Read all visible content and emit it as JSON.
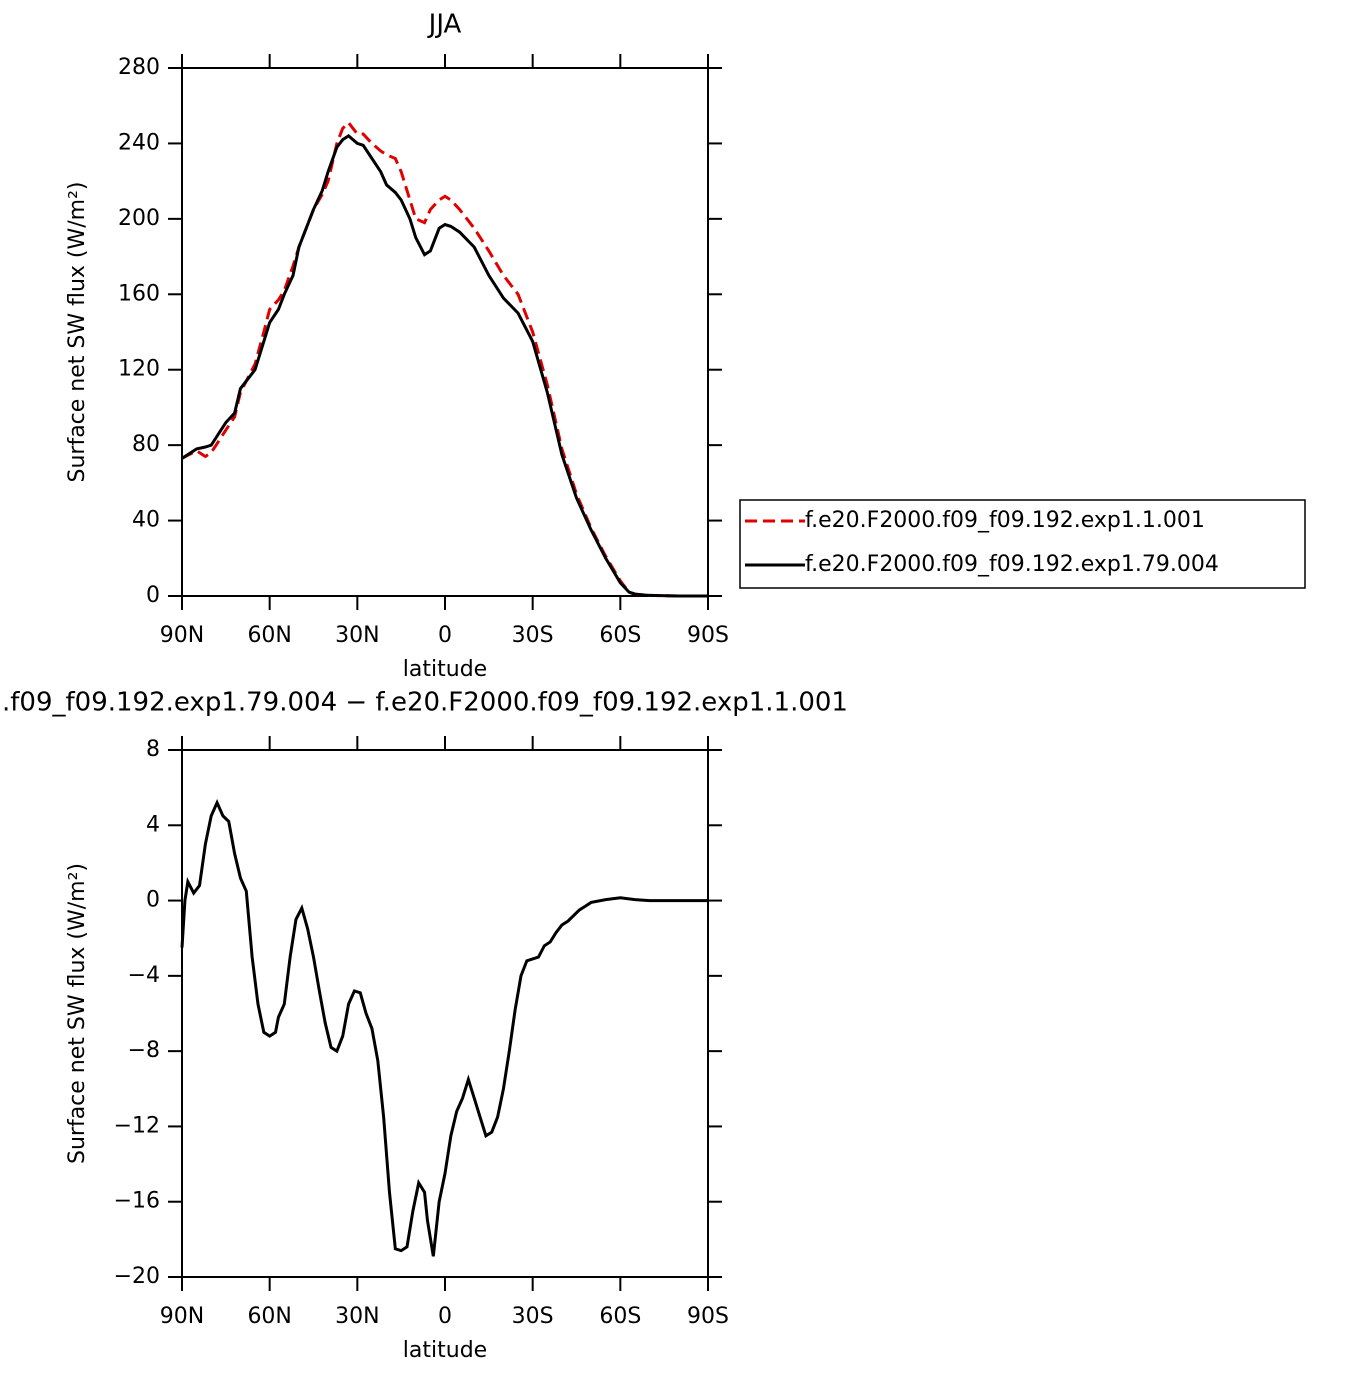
{
  "chart_data": [
    {
      "type": "line",
      "title": "JJA",
      "xlabel": "latitude",
      "ylabel": "Surface net SW flux (W/m²)",
      "x": [
        90,
        85,
        82,
        80,
        75,
        72,
        70,
        65,
        62,
        60,
        57,
        55,
        52,
        50,
        45,
        42,
        40,
        37,
        35,
        33,
        30,
        28,
        25,
        22,
        20,
        17,
        15,
        12,
        10,
        7,
        5,
        2,
        0,
        -2,
        -5,
        -10,
        -15,
        -20,
        -25,
        -30,
        -35,
        -40,
        -45,
        -50,
        -55,
        -60,
        -63,
        -65,
        -70,
        -80,
        -90
      ],
      "series": [
        {
          "name": "f.e20.F2000.f09_f09.192.exp1.1.001",
          "color": "#e00000",
          "style": "dashed",
          "values": [
            73,
            77,
            74,
            76,
            88,
            95,
            108,
            123,
            140,
            152,
            157,
            162,
            175,
            185,
            205,
            213,
            220,
            240,
            248,
            251,
            245,
            245,
            240,
            236,
            234,
            232,
            225,
            210,
            200,
            198,
            205,
            210,
            212,
            210,
            205,
            195,
            183,
            170,
            160,
            140,
            112,
            78,
            54,
            36,
            21,
            8,
            2,
            1,
            0.3,
            0,
            0
          ]
        },
        {
          "name": "f.e20.F2000.f09_f09.192.exp1.79.004",
          "color": "#000000",
          "style": "solid",
          "values": [
            73,
            78,
            79,
            80,
            92,
            97,
            110,
            120,
            135,
            145,
            152,
            160,
            170,
            185,
            205,
            215,
            225,
            238,
            242,
            244,
            240,
            239,
            232,
            225,
            218,
            214,
            210,
            200,
            190,
            181,
            183,
            195,
            197,
            196,
            193,
            185,
            170,
            158,
            150,
            135,
            108,
            75,
            52,
            35,
            20,
            7,
            2,
            1,
            0.3,
            0,
            0
          ]
        }
      ],
      "xlim": [
        90,
        -90
      ],
      "xticks": [
        {
          "value": 90,
          "label": "90N"
        },
        {
          "value": 60,
          "label": "60N"
        },
        {
          "value": 30,
          "label": "30N"
        },
        0,
        {
          "value": -30,
          "label": "30S"
        },
        {
          "value": -60,
          "label": "60S"
        },
        {
          "value": -90,
          "label": "90S"
        }
      ],
      "ylim": [
        0,
        280
      ],
      "yticks": [
        0,
        40,
        80,
        120,
        160,
        200,
        240,
        280
      ],
      "legend": "right"
    },
    {
      "type": "line",
      "title": ".f09_f09.192.exp1.79.004 − f.e20.F2000.f09_f09.192.exp1.1.001",
      "xlabel": "latitude",
      "ylabel": "Surface net SW flux (W/m²)",
      "x": [
        90,
        89,
        88,
        86,
        84,
        82,
        80,
        78,
        76,
        74,
        72,
        70,
        68,
        66,
        64,
        62,
        60,
        58,
        57,
        55,
        53,
        51,
        49,
        47,
        45,
        43,
        41,
        39,
        37,
        35,
        33,
        31,
        29,
        27,
        25,
        23,
        21,
        19,
        17,
        15,
        13,
        11,
        9,
        7,
        6,
        4,
        2,
        0,
        -2,
        -4,
        -6,
        -8,
        -10,
        -12,
        -14,
        -16,
        -18,
        -20,
        -22,
        -24,
        -26,
        -28,
        -30,
        -32,
        -34,
        -36,
        -38,
        -40,
        -42,
        -44,
        -46,
        -48,
        -50,
        -55,
        -60,
        -65,
        -70,
        -80,
        -90
      ],
      "series": [
        {
          "name": null,
          "color": "#000000",
          "style": "solid",
          "values": [
            -2.5,
            0,
            1,
            0.4,
            0.8,
            3,
            4.5,
            5.2,
            4.5,
            4.2,
            2.5,
            1.2,
            0.5,
            -3,
            -5.5,
            -7,
            -7.2,
            -7,
            -6.2,
            -5.5,
            -3,
            -1,
            -0.4,
            -1.5,
            -3,
            -4.8,
            -6.5,
            -7.8,
            -8,
            -7.2,
            -5.5,
            -4.8,
            -4.9,
            -6,
            -6.8,
            -8.5,
            -11.5,
            -15.5,
            -18.5,
            -18.6,
            -18.4,
            -16.5,
            -15,
            -15.5,
            -17,
            -18.9,
            -16,
            -14.5,
            -12.5,
            -11.2,
            -10.5,
            -9.5,
            -10.5,
            -11.5,
            -12.5,
            -12.3,
            -11.5,
            -10,
            -8,
            -5.8,
            -4,
            -3.2,
            -3.1,
            -3,
            -2.4,
            -2.2,
            -1.7,
            -1.3,
            -1.1,
            -0.8,
            -0.5,
            -0.3,
            -0.1,
            0.05,
            0.15,
            0.05,
            0,
            0,
            0
          ]
        }
      ],
      "xlim": [
        90,
        -90
      ],
      "xticks": [
        {
          "value": 90,
          "label": "90N"
        },
        {
          "value": 60,
          "label": "60N"
        },
        {
          "value": 30,
          "label": "30N"
        },
        0,
        {
          "value": -30,
          "label": "30S"
        },
        {
          "value": -60,
          "label": "60S"
        },
        {
          "value": -90,
          "label": "90S"
        }
      ],
      "ylim": [
        -20,
        8
      ],
      "yticks": [
        {
          "value": -20,
          "label": "−20"
        },
        {
          "value": -16,
          "label": "−16"
        },
        {
          "value": -12,
          "label": "−12"
        },
        {
          "value": -8,
          "label": "−8"
        },
        {
          "value": -4,
          "label": "−4"
        },
        0,
        4,
        8
      ]
    }
  ]
}
